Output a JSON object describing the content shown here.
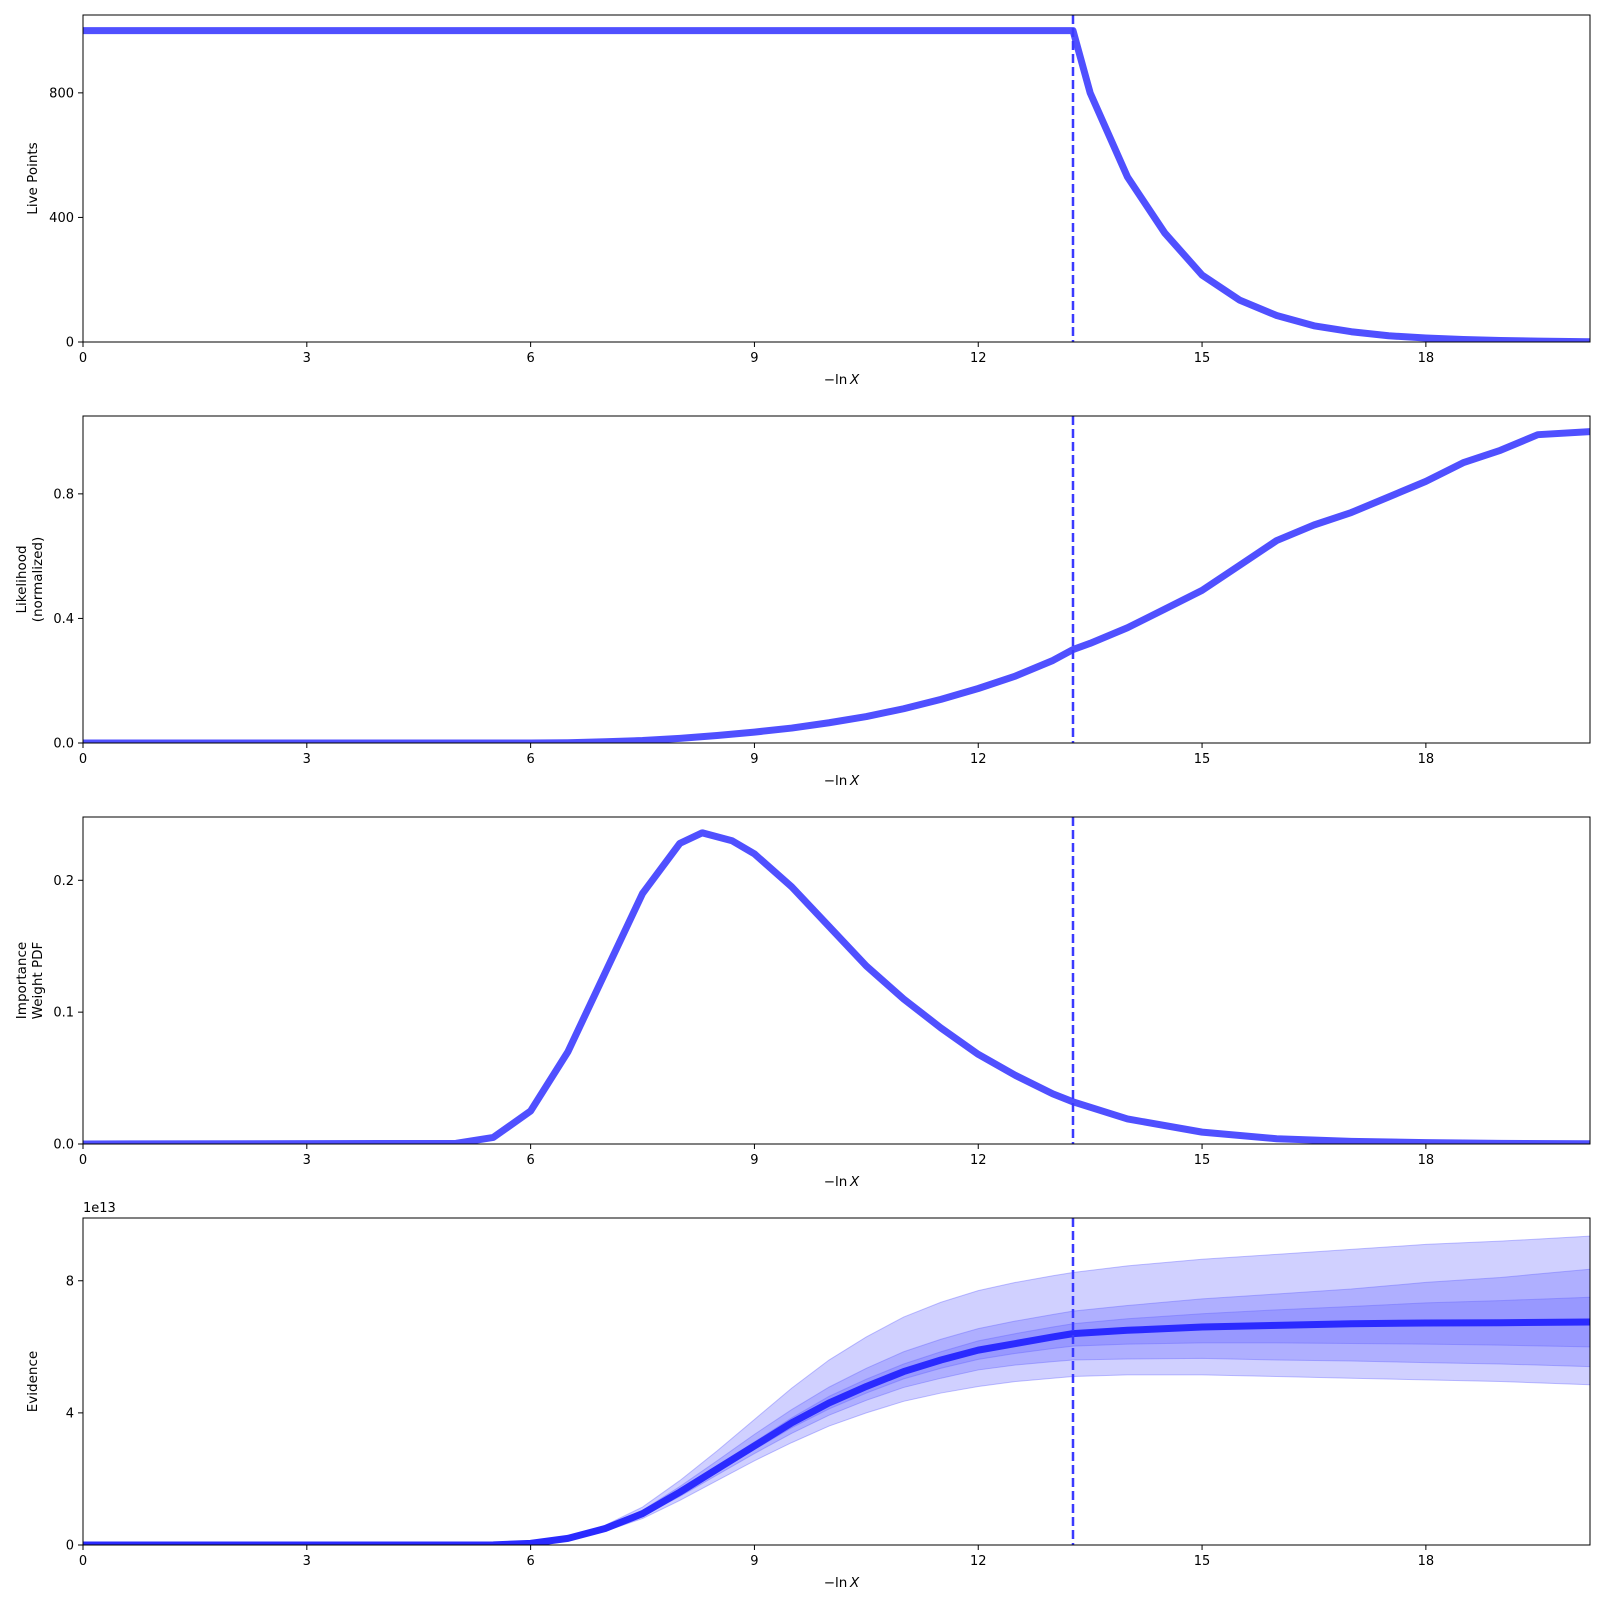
{
  "chart_data": [
    {
      "type": "line",
      "ylabel_lines": [
        "Live Points"
      ],
      "xlabel_prefix": "−ln",
      "xlabel_var": "X",
      "xlim": [
        0,
        20.2
      ],
      "ylim": [
        0,
        1050
      ],
      "xticks": [
        0,
        3,
        6,
        9,
        12,
        15,
        18
      ],
      "yticks": [
        0,
        400,
        800
      ],
      "sci_label": "",
      "vline_x": 13.27,
      "line_color": "#5050ff",
      "series": [
        {
          "x": [
            0,
            13.27,
            13.5,
            14,
            14.5,
            15,
            15.5,
            16,
            16.5,
            17,
            17.5,
            18,
            18.5,
            19,
            19.5,
            20.2
          ],
          "y": [
            1000,
            1000,
            800,
            530,
            350,
            215,
            135,
            85,
            52,
            33,
            20,
            13,
            8,
            5,
            3,
            1
          ]
        }
      ]
    },
    {
      "type": "line",
      "ylabel_lines": [
        "Likelihood",
        "(normalized)"
      ],
      "xlabel_prefix": "−ln",
      "xlabel_var": "X",
      "xlim": [
        0,
        20.2
      ],
      "ylim": [
        0,
        1.05
      ],
      "xticks": [
        0,
        3,
        6,
        9,
        12,
        15,
        18
      ],
      "yticks": [
        0.0,
        0.4,
        0.8
      ],
      "ytick_labels": [
        "0.0",
        "0.4",
        "0.8"
      ],
      "sci_label": "",
      "vline_x": 13.27,
      "line_color": "#5050ff",
      "series": [
        {
          "x": [
            0,
            6,
            6.5,
            7,
            7.5,
            8,
            8.5,
            9,
            9.5,
            10,
            10.5,
            11,
            11.5,
            12,
            12.5,
            13,
            13.27,
            13.5,
            14,
            14.5,
            15,
            15.5,
            16,
            16.5,
            17,
            17.5,
            18,
            18.5,
            19,
            19.5,
            20.2
          ],
          "y": [
            0,
            0,
            0.001,
            0.004,
            0.008,
            0.015,
            0.024,
            0.035,
            0.048,
            0.065,
            0.085,
            0.11,
            0.14,
            0.175,
            0.215,
            0.265,
            0.3,
            0.32,
            0.37,
            0.43,
            0.49,
            0.57,
            0.65,
            0.7,
            0.74,
            0.79,
            0.84,
            0.9,
            0.94,
            0.99,
            1.0
          ]
        }
      ]
    },
    {
      "type": "line",
      "ylabel_lines": [
        "Importance",
        "Weight PDF"
      ],
      "xlabel_prefix": "−ln",
      "xlabel_var": "X",
      "xlim": [
        0,
        20.2
      ],
      "ylim": [
        0,
        0.248
      ],
      "xticks": [
        0,
        3,
        6,
        9,
        12,
        15,
        18
      ],
      "yticks": [
        0.0,
        0.1,
        0.2
      ],
      "ytick_labels": [
        "0.0",
        "0.1",
        "0.2"
      ],
      "sci_label": "",
      "vline_x": 13.27,
      "line_color": "#5050ff",
      "series": [
        {
          "x": [
            0,
            5,
            5.5,
            6,
            6.5,
            7,
            7.5,
            8,
            8.3,
            8.7,
            9,
            9.5,
            10,
            10.5,
            11,
            11.5,
            12,
            12.5,
            13,
            13.27,
            14,
            15,
            16,
            17,
            18,
            19,
            20.2
          ],
          "y": [
            0,
            0.0005,
            0.005,
            0.025,
            0.07,
            0.13,
            0.19,
            0.228,
            0.236,
            0.23,
            0.22,
            0.195,
            0.165,
            0.135,
            0.11,
            0.088,
            0.068,
            0.052,
            0.038,
            0.032,
            0.019,
            0.009,
            0.004,
            0.002,
            0.001,
            0.0005,
            0.0002
          ]
        }
      ]
    },
    {
      "type": "area",
      "ylabel_lines": [
        "Evidence"
      ],
      "xlabel_prefix": "−ln",
      "xlabel_var": "X",
      "xlim": [
        0,
        20.2
      ],
      "ylim": [
        0,
        9.9
      ],
      "xticks": [
        0,
        3,
        6,
        9,
        12,
        15,
        18
      ],
      "yticks": [
        0,
        4,
        8
      ],
      "sci_label": "1e13",
      "vline_x": 13.27,
      "line_color": "#2a2aff",
      "band_color": "#6464ff",
      "x": [
        0,
        5,
        5.5,
        6,
        6.5,
        7,
        7.5,
        8,
        8.5,
        9,
        9.5,
        10,
        10.5,
        11,
        11.5,
        12,
        12.5,
        13,
        13.27,
        14,
        15,
        16,
        17,
        18,
        19,
        20.2
      ],
      "median": [
        0,
        0,
        0.005,
        0.05,
        0.2,
        0.5,
        0.95,
        1.6,
        2.3,
        3.0,
        3.7,
        4.3,
        4.8,
        5.25,
        5.6,
        5.9,
        6.1,
        6.3,
        6.4,
        6.5,
        6.6,
        6.65,
        6.7,
        6.72,
        6.73,
        6.75
      ],
      "bands": [
        {
          "lower": [
            0,
            0,
            0.004,
            0.04,
            0.16,
            0.42,
            0.8,
            1.35,
            1.95,
            2.55,
            3.1,
            3.6,
            4.0,
            4.35,
            4.6,
            4.8,
            4.95,
            5.05,
            5.1,
            5.15,
            5.15,
            5.1,
            5.05,
            5.0,
            4.95,
            4.85
          ],
          "upper": [
            0,
            0,
            0.006,
            0.06,
            0.24,
            0.6,
            1.15,
            1.95,
            2.85,
            3.8,
            4.75,
            5.6,
            6.3,
            6.9,
            7.35,
            7.7,
            7.95,
            8.15,
            8.25,
            8.45,
            8.65,
            8.8,
            8.95,
            9.1,
            9.2,
            9.35
          ]
        },
        {
          "lower": [
            0,
            0,
            0.0045,
            0.045,
            0.18,
            0.46,
            0.87,
            1.47,
            2.12,
            2.77,
            3.38,
            3.93,
            4.38,
            4.77,
            5.05,
            5.3,
            5.45,
            5.55,
            5.6,
            5.63,
            5.65,
            5.6,
            5.57,
            5.52,
            5.48,
            5.4
          ],
          "upper": [
            0,
            0,
            0.0055,
            0.055,
            0.22,
            0.55,
            1.05,
            1.77,
            2.55,
            3.35,
            4.1,
            4.78,
            5.35,
            5.85,
            6.23,
            6.55,
            6.78,
            6.98,
            7.08,
            7.25,
            7.45,
            7.6,
            7.75,
            7.95,
            8.1,
            8.35
          ]
        },
        {
          "lower": [
            0,
            0,
            0.0048,
            0.048,
            0.19,
            0.48,
            0.91,
            1.53,
            2.21,
            2.89,
            3.55,
            4.12,
            4.6,
            5.03,
            5.35,
            5.62,
            5.8,
            5.95,
            6.02,
            6.08,
            6.12,
            6.12,
            6.1,
            6.08,
            6.05,
            6.0
          ],
          "upper": [
            0,
            0,
            0.0052,
            0.052,
            0.21,
            0.52,
            0.99,
            1.67,
            2.4,
            3.12,
            3.85,
            4.5,
            5.02,
            5.48,
            5.85,
            6.18,
            6.4,
            6.6,
            6.7,
            6.85,
            7.0,
            7.12,
            7.22,
            7.33,
            7.4,
            7.5
          ]
        }
      ]
    }
  ]
}
